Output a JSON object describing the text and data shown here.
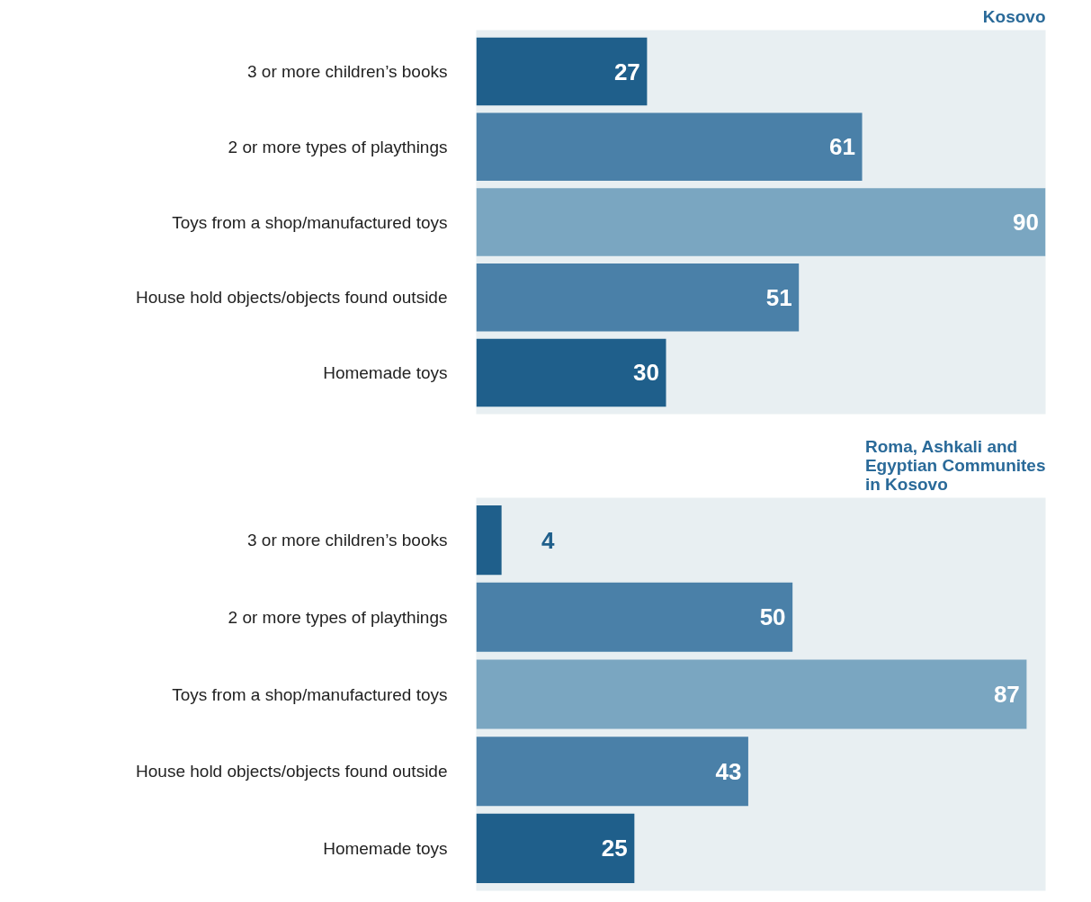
{
  "chart_data": [
    {
      "type": "bar",
      "orientation": "horizontal",
      "title": "Kosovo",
      "categories": [
        "3 or more children’s books",
        "2 or more types of playthings",
        "Toys from a shop/manufactured toys",
        "House hold objects/objects found outside",
        "Homemade toys"
      ],
      "values": [
        27,
        61,
        90,
        51,
        30
      ],
      "colors": [
        "#1f5f8b",
        "#4a80a8",
        "#7aa6c1",
        "#4a80a8",
        "#1f5f8b"
      ],
      "data_labels": true,
      "tick_labels": "y"
    },
    {
      "type": "bar",
      "orientation": "horizontal",
      "title": "Roma, Ashkali and Egyptian Communites in Kosovo",
      "categories": [
        "3 or more children’s books",
        "2 or more types of playthings",
        "Toys from a shop/manufactured toys",
        "House hold objects/objects found outside",
        "Homemade toys"
      ],
      "values": [
        4,
        50,
        87,
        43,
        25
      ],
      "colors": [
        "#1f5f8b",
        "#4a80a8",
        "#7aa6c1",
        "#4a80a8",
        "#1f5f8b"
      ],
      "data_labels": true,
      "tick_labels": "y"
    }
  ]
}
